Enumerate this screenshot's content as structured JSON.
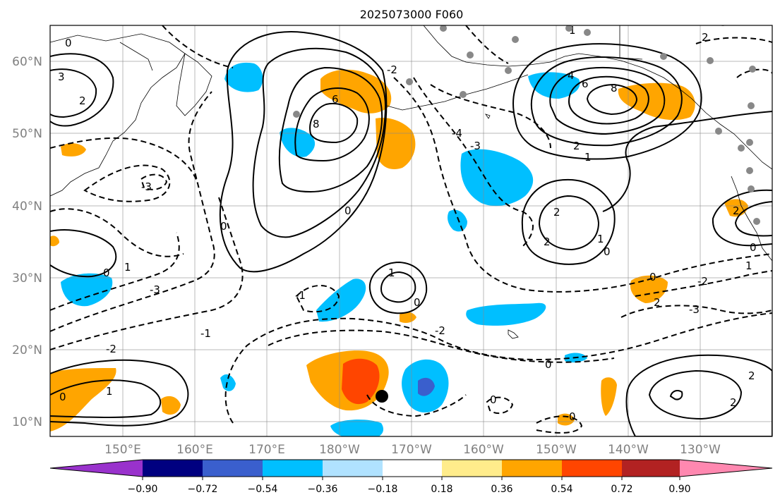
{
  "title": "2025073000 F060",
  "map": {
    "lat_labels": [
      "60°N",
      "50°N",
      "40°N",
      "30°N",
      "20°N",
      "10°N"
    ],
    "lon_labels": [
      "150°E",
      "160°E",
      "170°E",
      "180°W",
      "170°W",
      "160°W",
      "150°W",
      "140°W",
      "130°W"
    ],
    "grid": true,
    "extent": {
      "lon_min": 140,
      "lon_max": 240,
      "lat_min": 8,
      "lat_max": 65
    }
  },
  "contour_labels": [
    "0",
    "1",
    "2",
    "3",
    "4",
    "6",
    "8",
    "-1",
    "-2",
    "-3",
    "-4"
  ],
  "colorbar": {
    "ticks": [
      "−0.90",
      "−0.72",
      "−0.54",
      "−0.36",
      "−0.18",
      "0.18",
      "0.36",
      "0.54",
      "0.72",
      "0.90"
    ],
    "colors": [
      "#9932cc",
      "#000080",
      "#3a5fcd",
      "#00bfff",
      "#b0e2ff",
      "#ffffff",
      "#ffec8b",
      "#ffa500",
      "#ff4500",
      "#b22222",
      "#ff88b0"
    ]
  },
  "colors": {
    "land": "#000000",
    "grid": "#888888",
    "contour": "#000000",
    "marker": "#000000",
    "station": "#888888"
  }
}
